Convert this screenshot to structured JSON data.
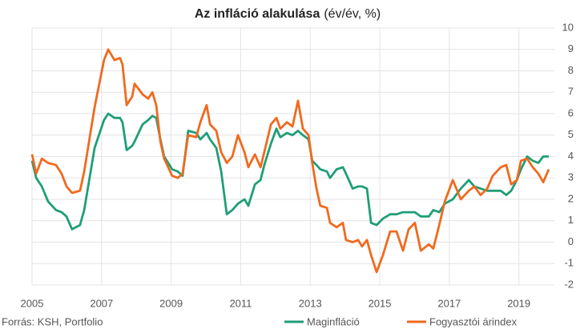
{
  "chart_data": {
    "type": "line",
    "title": "Az infláció alakulása",
    "subtitle": "(év/év, %)",
    "source": "Forrás: KSH, Portfolio",
    "x": [
      2005.0,
      2005.12,
      2005.28,
      2005.46,
      2005.69,
      2005.85,
      2005.99,
      2006.15,
      2006.38,
      2006.5,
      2006.8,
      2007.07,
      2007.19,
      2007.37,
      2007.53,
      2007.6,
      2007.72,
      2007.88,
      2007.95,
      2008.18,
      2008.34,
      2008.46,
      2008.57,
      2008.69,
      2008.8,
      2009.03,
      2009.19,
      2009.33,
      2009.49,
      2009.72,
      2009.84,
      2010.02,
      2010.12,
      2010.3,
      2010.44,
      2010.6,
      2010.76,
      2010.92,
      2011.11,
      2011.22,
      2011.41,
      2011.57,
      2011.68,
      2011.87,
      2012.03,
      2012.14,
      2012.33,
      2012.49,
      2012.65,
      2012.79,
      2012.95,
      2013.06,
      2013.18,
      2013.29,
      2013.48,
      2013.57,
      2013.76,
      2013.94,
      2014.03,
      2014.22,
      2014.38,
      2014.49,
      2014.63,
      2014.75,
      2014.91,
      2015.09,
      2015.3,
      2015.48,
      2015.67,
      2015.83,
      2016.01,
      2016.18,
      2016.41,
      2016.54,
      2016.71,
      2016.87,
      2017.1,
      2017.33,
      2017.56,
      2017.72,
      2017.9,
      2018.09,
      2018.25,
      2018.48,
      2018.64,
      2018.78,
      2018.94,
      2019.06,
      2019.24,
      2019.4,
      2019.56,
      2019.7,
      2019.86
    ],
    "series": [
      {
        "name": "Maginfláció",
        "color": "#1f9e78",
        "values": [
          3.8,
          3.0,
          2.6,
          1.9,
          1.5,
          1.4,
          1.2,
          0.6,
          0.8,
          1.5,
          4.4,
          5.7,
          6.0,
          5.8,
          5.8,
          5.6,
          4.3,
          4.5,
          4.7,
          5.5,
          5.7,
          5.9,
          5.8,
          4.8,
          4.0,
          3.4,
          3.3,
          3.1,
          5.2,
          5.1,
          4.8,
          5.1,
          4.8,
          4.4,
          3.3,
          1.3,
          1.5,
          1.8,
          2.0,
          1.7,
          2.7,
          2.9,
          3.6,
          4.6,
          5.3,
          4.9,
          5.1,
          5.0,
          5.2,
          5.0,
          4.8,
          3.8,
          3.6,
          3.4,
          3.3,
          3.0,
          3.4,
          3.5,
          3.2,
          2.5,
          2.6,
          2.6,
          2.5,
          0.9,
          0.8,
          1.1,
          1.3,
          1.3,
          1.4,
          1.4,
          1.4,
          1.2,
          1.2,
          1.5,
          1.4,
          1.8,
          2.0,
          2.5,
          2.9,
          2.6,
          2.5,
          2.4,
          2.4,
          2.4,
          2.2,
          2.4,
          2.9,
          3.4,
          4.0,
          3.8,
          3.7,
          4.0,
          4.0
        ]
      },
      {
        "name": "Fogyasztói árindex",
        "color": "#f06a1f",
        "values": [
          4.1,
          3.2,
          3.9,
          3.7,
          3.6,
          3.2,
          2.6,
          2.3,
          2.4,
          3.3,
          6.3,
          8.5,
          9.0,
          8.5,
          8.6,
          8.3,
          6.4,
          6.8,
          7.4,
          6.9,
          6.7,
          7.0,
          6.4,
          4.7,
          3.9,
          3.1,
          3.0,
          3.2,
          5.0,
          4.9,
          5.6,
          6.4,
          5.5,
          5.2,
          4.2,
          3.7,
          4.0,
          5.0,
          4.2,
          3.5,
          4.1,
          3.5,
          4.2,
          5.5,
          5.8,
          5.3,
          5.6,
          5.4,
          6.6,
          5.3,
          5.0,
          3.7,
          2.5,
          1.7,
          1.6,
          0.9,
          0.7,
          0.9,
          0.1,
          0.0,
          0.1,
          -0.2,
          0.1,
          -0.6,
          -1.4,
          -0.6,
          0.5,
          0.5,
          -0.4,
          0.6,
          0.9,
          -0.4,
          -0.1,
          -0.3,
          0.8,
          1.9,
          2.9,
          2.0,
          2.4,
          2.6,
          2.2,
          2.5,
          3.1,
          3.5,
          3.6,
          2.7,
          2.9,
          3.8,
          3.9,
          3.5,
          3.2,
          2.8,
          3.4
        ]
      }
    ],
    "xlim": [
      2005,
      2019.86
    ],
    "xticks": [
      2005,
      2007,
      2009,
      2011,
      2013,
      2015,
      2017,
      2019
    ],
    "ylim": [
      -2,
      10
    ],
    "yticks": [
      -2,
      -1,
      0,
      1,
      2,
      3,
      4,
      5,
      6,
      7,
      8,
      9,
      10
    ],
    "grid": true,
    "legend": "bottom"
  }
}
